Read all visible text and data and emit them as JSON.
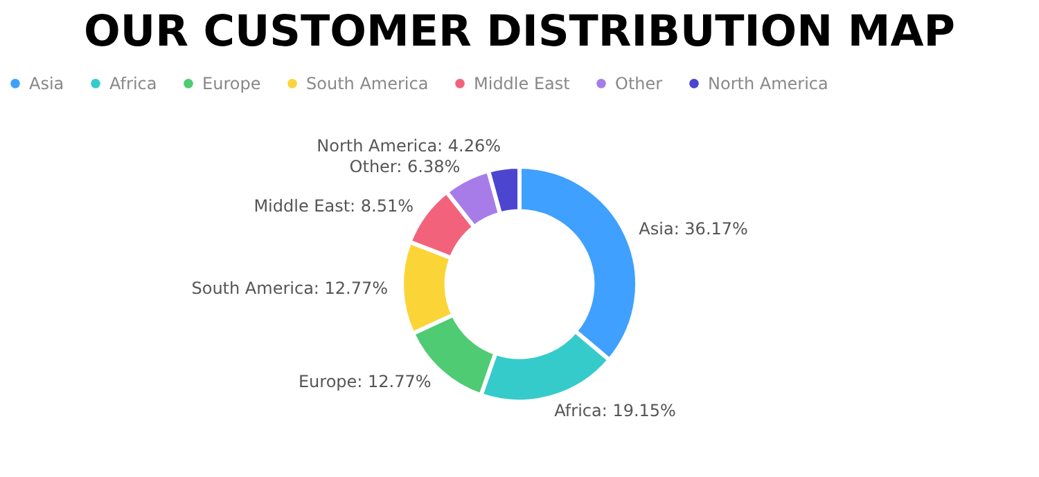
{
  "chart_data": {
    "type": "donut",
    "title": "OUR CUSTOMER DISTRIBUTION MAP",
    "categories": [
      "Asia",
      "Africa",
      "Europe",
      "South America",
      "Middle East",
      "Other",
      "North America"
    ],
    "values": [
      36.17,
      19.15,
      12.77,
      12.77,
      8.51,
      6.38,
      4.26
    ],
    "colors": [
      "#3fa0ff",
      "#36cbcb",
      "#4ecb73",
      "#fbd437",
      "#f2637b",
      "#a77ce9",
      "#4b45cf"
    ],
    "value_labels": [
      "Asia: 36.17%",
      "Africa: 19.15%",
      "Europe: 12.77%",
      "South America: 12.77%",
      "Middle East: 8.51%",
      "Other: 6.38%",
      "North America: 4.26%"
    ],
    "legend": "top"
  }
}
